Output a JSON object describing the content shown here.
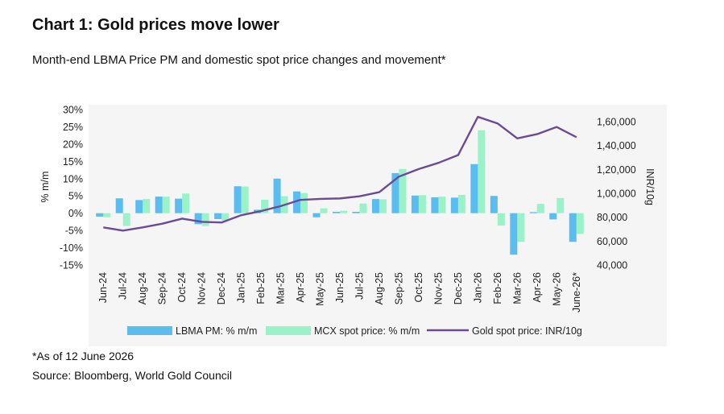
{
  "title": "Chart 1: Gold prices move lower",
  "subtitle": "Month-end LBMA Price PM and domestic spot price changes and movement*",
  "footnote": "*As of 12 June 2026",
  "source": "Source: Bloomberg, World Gold Council",
  "colors": {
    "lbma": "#5bbcf0",
    "mcx": "#9af3c8",
    "spot": "#6b4b95",
    "panel": "#f5f5f5"
  },
  "chart_data": {
    "type": "bar",
    "categories": [
      "Jun-24",
      "Jul-24",
      "Aug-24",
      "Sep-24",
      "Oct-24",
      "Nov-24",
      "Dec-24",
      "Jan-25",
      "Feb-25",
      "Mar-25",
      "Apr-25",
      "May-25",
      "Jun-25",
      "Jul-25",
      "Aug-25",
      "Sep-25",
      "Oct-25",
      "Nov-25",
      "Dec-25",
      "Jan-26",
      "Feb-26",
      "Mar-26",
      "Apr-26",
      "May-26",
      "June-26*"
    ],
    "series": [
      {
        "name": "LBMA PM: % m/m",
        "type": "bar",
        "axis": "left",
        "values": [
          -1,
          4.3,
          3.8,
          4.8,
          4.2,
          -3.2,
          -1.7,
          7.8,
          1.0,
          10.0,
          6.3,
          -1.2,
          0.4,
          0.4,
          4.1,
          11.6,
          5.1,
          4.6,
          4.5,
          14.2,
          5.0,
          -12.0,
          0.3,
          -1.8,
          -8.3
        ]
      },
      {
        "name": "MCX spot price: % m/m",
        "type": "bar",
        "axis": "left",
        "values": [
          -1.2,
          -3.7,
          4.1,
          4.8,
          5.7,
          -3.7,
          -2.1,
          7.7,
          3.9,
          4.9,
          5.8,
          1.4,
          0.7,
          2.8,
          4.0,
          12.8,
          5.2,
          4.8,
          5.3,
          24.0,
          -3.6,
          -8.3,
          2.7,
          4.4,
          -6.0
        ]
      },
      {
        "name": "Gold spot price: INR/10g",
        "type": "line",
        "axis": "right",
        "values": [
          71500,
          68800,
          71500,
          74600,
          78800,
          76100,
          75600,
          81700,
          85100,
          89300,
          94500,
          95300,
          95700,
          97500,
          101000,
          114000,
          120300,
          125500,
          132000,
          164000,
          158500,
          146000,
          149500,
          155500,
          147000
        ]
      }
    ],
    "yticks_left": [
      "30%",
      "25%",
      "20%",
      "15%",
      "10%",
      "5%",
      "0%",
      "-5%",
      "-10%",
      "-15%"
    ],
    "ylim_left": [
      -15,
      30
    ],
    "yticks_right": [
      "1,60,000",
      "1,40,000",
      "1,20,000",
      "1,00,000",
      "80,000",
      "60,000",
      "40,000"
    ],
    "ylim_right": [
      40000,
      160000
    ],
    "ylabel_left": "% m/m",
    "ylabel_right": "INR/10g",
    "legend_position": "bottom"
  }
}
